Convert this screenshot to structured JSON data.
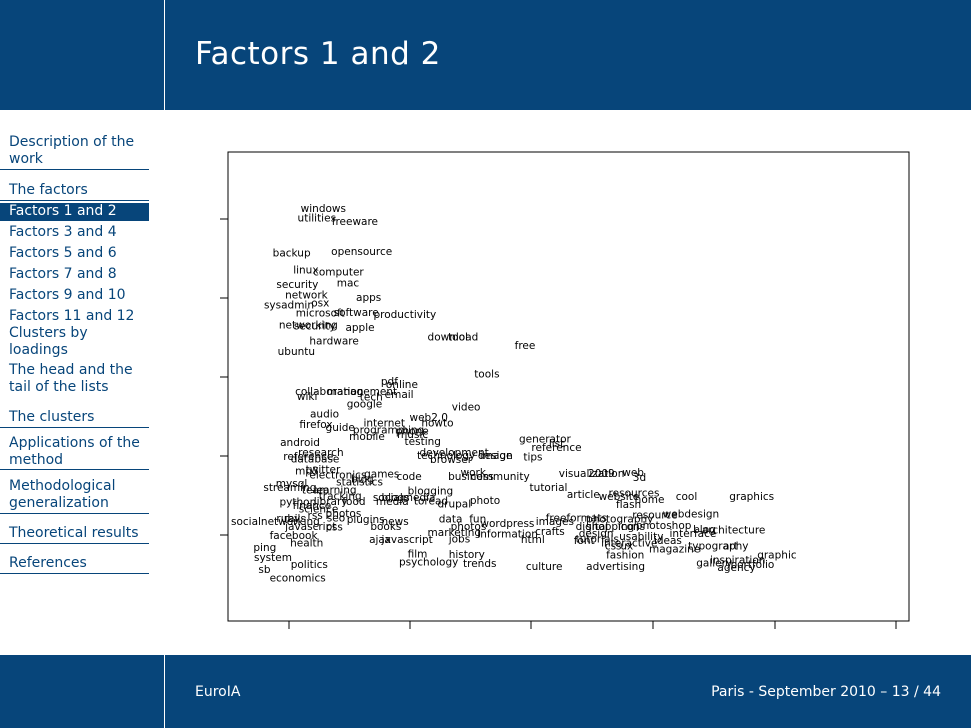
{
  "slide": {
    "title": "Factors 1 and 2",
    "footer_left": "EuroIA",
    "footer_right": "Paris - September 2010 – 13 / 44"
  },
  "sidebar": {
    "items": [
      {
        "label": "Description of the work"
      },
      {
        "label": "The factors"
      },
      {
        "label": "Factors 1 and 2"
      },
      {
        "label": "Factors 3 and 4"
      },
      {
        "label": "Factors 5 and 6"
      },
      {
        "label": "Factors 7 and 8"
      },
      {
        "label": "Factors 9 and 10"
      },
      {
        "label": "Factors 11 and 12"
      },
      {
        "label": "Clusters by loadings"
      },
      {
        "label": "The head and the tail of the lists"
      },
      {
        "label": "The clusters"
      },
      {
        "label": "Applications of the method"
      },
      {
        "label": "Methodological generalization"
      },
      {
        "label": "Theoretical results"
      },
      {
        "label": "References"
      }
    ]
  },
  "colors": {
    "brand": "#07457a",
    "text_on_brand": "#ffffff"
  },
  "chart_data": {
    "type": "scatter",
    "title": "",
    "xlabel": "",
    "ylabel": "",
    "grid": false,
    "x_ticks": 6,
    "y_ticks": 5,
    "xlim": [
      0,
      100
    ],
    "ylim": [
      0,
      100
    ],
    "points": [
      {
        "label": "windows",
        "x": 11.2,
        "y": 94.0
      },
      {
        "label": "utilities",
        "x": 10.7,
        "y": 91.6
      },
      {
        "label": "freeware",
        "x": 16.2,
        "y": 90.7
      },
      {
        "label": "backup",
        "x": 6.7,
        "y": 82.9
      },
      {
        "label": "opensource",
        "x": 16.1,
        "y": 83.2
      },
      {
        "label": "linux",
        "x": 10.0,
        "y": 78.6
      },
      {
        "label": "computer",
        "x": 13.2,
        "y": 78.1
      },
      {
        "label": "security",
        "x": 7.3,
        "y": 75.0
      },
      {
        "label": "mac",
        "x": 17.0,
        "y": 75.4
      },
      {
        "label": "network",
        "x": 8.7,
        "y": 72.4
      },
      {
        "label": "apps",
        "x": 20.1,
        "y": 71.7
      },
      {
        "label": "sysadmin",
        "x": 5.3,
        "y": 69.9
      },
      {
        "label": "osx",
        "x": 12.9,
        "y": 70.4
      },
      {
        "label": "microsoft",
        "x": 10.4,
        "y": 67.9
      },
      {
        "label": "software",
        "x": 16.5,
        "y": 68.0
      },
      {
        "label": "productivity",
        "x": 22.9,
        "y": 67.5
      },
      {
        "label": "networking",
        "x": 7.7,
        "y": 64.9
      },
      {
        "label": "security",
        "x": 10.1,
        "y": 64.6
      },
      {
        "label": "apple",
        "x": 18.4,
        "y": 64.2
      },
      {
        "label": "hardware",
        "x": 12.6,
        "y": 60.9
      },
      {
        "label": "download",
        "x": 31.6,
        "y": 61.9
      },
      {
        "label": "tool",
        "x": 34.9,
        "y": 61.9
      },
      {
        "label": "free",
        "x": 45.6,
        "y": 59.7
      },
      {
        "label": "ubuntu",
        "x": 7.5,
        "y": 58.3
      },
      {
        "label": "tools",
        "x": 39.1,
        "y": 52.6
      },
      {
        "label": "pdf",
        "x": 24.1,
        "y": 50.8
      },
      {
        "label": "online",
        "x": 24.9,
        "y": 50.0
      },
      {
        "label": "collaboration",
        "x": 10.3,
        "y": 48.2
      },
      {
        "label": "management",
        "x": 15.4,
        "y": 48.2
      },
      {
        "label": "tech",
        "x": 20.7,
        "y": 46.9
      },
      {
        "label": "email",
        "x": 24.7,
        "y": 47.5
      },
      {
        "label": "wiki",
        "x": 10.6,
        "y": 47.0
      },
      {
        "label": "google",
        "x": 18.6,
        "y": 45.1
      },
      {
        "label": "video",
        "x": 35.5,
        "y": 44.4
      },
      {
        "label": "audio",
        "x": 12.7,
        "y": 42.6
      },
      {
        "label": "web2.0",
        "x": 28.7,
        "y": 41.8
      },
      {
        "label": "howto",
        "x": 30.6,
        "y": 40.4
      },
      {
        "label": "firefox",
        "x": 11.0,
        "y": 40.0
      },
      {
        "label": "guide",
        "x": 15.2,
        "y": 39.2
      },
      {
        "label": "internet",
        "x": 21.3,
        "y": 40.4
      },
      {
        "label": "programming",
        "x": 19.6,
        "y": 38.6
      },
      {
        "label": "phone",
        "x": 26.5,
        "y": 38.4
      },
      {
        "label": "mobile",
        "x": 19.0,
        "y": 37.0
      },
      {
        "label": "music",
        "x": 26.7,
        "y": 37.5
      },
      {
        "label": "generator",
        "x": 46.3,
        "y": 36.4
      },
      {
        "label": "list",
        "x": 51.1,
        "y": 35.2
      },
      {
        "label": "android",
        "x": 7.9,
        "y": 35.5
      },
      {
        "label": "testing",
        "x": 27.9,
        "y": 35.8
      },
      {
        "label": "reference",
        "x": 48.3,
        "y": 34.3
      },
      {
        "label": "research",
        "x": 10.8,
        "y": 33.0
      },
      {
        "label": "reference",
        "x": 8.4,
        "y": 32.0
      },
      {
        "label": "development",
        "x": 30.3,
        "y": 33.0
      },
      {
        "label": "technology",
        "x": 29.9,
        "y": 32.3
      },
      {
        "label": "design",
        "x": 39.7,
        "y": 32.3
      },
      {
        "label": "image",
        "x": 40.0,
        "y": 32.3
      },
      {
        "label": "tips",
        "x": 47.0,
        "y": 31.9
      },
      {
        "label": "database",
        "x": 9.6,
        "y": 31.4
      },
      {
        "label": "browser",
        "x": 32.0,
        "y": 31.2
      },
      {
        "label": "twitter",
        "x": 12.0,
        "y": 28.7
      },
      {
        "label": "mp3",
        "x": 10.3,
        "y": 28.4
      },
      {
        "label": "electronics",
        "x": 12.6,
        "y": 27.4
      },
      {
        "label": "games",
        "x": 21.4,
        "y": 27.6
      },
      {
        "label": "code",
        "x": 26.6,
        "y": 27.0
      },
      {
        "label": "web",
        "x": 62.9,
        "y": 28.0
      },
      {
        "label": "work",
        "x": 36.9,
        "y": 28.0
      },
      {
        "label": "visualization",
        "x": 52.7,
        "y": 27.8
      },
      {
        "label": "2009",
        "x": 57.4,
        "y": 27.8
      },
      {
        "label": "3d",
        "x": 64.6,
        "y": 26.7
      },
      {
        "label": "blog",
        "x": 19.3,
        "y": 26.4
      },
      {
        "label": "business",
        "x": 34.9,
        "y": 27.0
      },
      {
        "label": "community",
        "x": 38.5,
        "y": 27.0
      },
      {
        "label": "statistics",
        "x": 16.9,
        "y": 25.6
      },
      {
        "label": "mysql",
        "x": 7.2,
        "y": 25.3
      },
      {
        "label": "streaming",
        "x": 5.2,
        "y": 24.2
      },
      {
        "label": "team",
        "x": 11.4,
        "y": 23.6
      },
      {
        "label": "tutorial",
        "x": 48.0,
        "y": 24.2
      },
      {
        "label": "resources",
        "x": 60.7,
        "y": 22.9
      },
      {
        "label": "learning",
        "x": 13.3,
        "y": 23.6
      },
      {
        "label": "tracking",
        "x": 14.1,
        "y": 22.1
      },
      {
        "label": "blogging",
        "x": 28.4,
        "y": 23.4
      },
      {
        "label": "cool",
        "x": 71.5,
        "y": 22.0
      },
      {
        "label": "graphics",
        "x": 80.1,
        "y": 22.0
      },
      {
        "label": "article",
        "x": 54.0,
        "y": 22.5
      },
      {
        "label": "website",
        "x": 59.1,
        "y": 22.0
      },
      {
        "label": "home",
        "x": 64.9,
        "y": 21.2
      },
      {
        "label": "socialmedia",
        "x": 22.8,
        "y": 21.8
      },
      {
        "label": "blogs",
        "x": 24.2,
        "y": 21.8
      },
      {
        "label": "python",
        "x": 7.8,
        "y": 20.6
      },
      {
        "label": "library",
        "x": 13.3,
        "y": 20.8
      },
      {
        "label": "food",
        "x": 17.9,
        "y": 20.7
      },
      {
        "label": "toread",
        "x": 29.4,
        "y": 20.9
      },
      {
        "label": "drupal",
        "x": 33.2,
        "y": 20.1
      },
      {
        "label": "photo",
        "x": 38.4,
        "y": 21.0
      },
      {
        "label": "flash",
        "x": 61.9,
        "y": 20.0
      },
      {
        "label": "finance",
        "x": 9.9,
        "y": 19.7
      },
      {
        "label": "media",
        "x": 23.3,
        "y": 20.7
      },
      {
        "label": "science",
        "x": 10.9,
        "y": 18.9
      },
      {
        "label": "webdesign",
        "x": 69.4,
        "y": 17.6
      },
      {
        "label": "photos",
        "x": 15.2,
        "y": 17.8
      },
      {
        "label": "rss",
        "x": 12.3,
        "y": 17.2
      },
      {
        "label": "ruby",
        "x": 7.3,
        "y": 16.5
      },
      {
        "label": "rails",
        "x": 8.5,
        "y": 16.5
      },
      {
        "label": "seo",
        "x": 15.4,
        "y": 16.6
      },
      {
        "label": "plugins",
        "x": 18.6,
        "y": 16.2
      },
      {
        "label": "news",
        "x": 24.2,
        "y": 15.8
      },
      {
        "label": "data",
        "x": 33.4,
        "y": 16.4
      },
      {
        "label": "fun",
        "x": 38.3,
        "y": 16.4
      },
      {
        "label": "images",
        "x": 49.0,
        "y": 15.8
      },
      {
        "label": "freeformats",
        "x": 50.6,
        "y": 16.6
      },
      {
        "label": "photography",
        "x": 57.1,
        "y": 16.4
      },
      {
        "label": "resource",
        "x": 64.5,
        "y": 17.4
      },
      {
        "label": "socialnetworking",
        "x": 0.0,
        "y": 15.8
      },
      {
        "label": "wordpress",
        "x": 40.1,
        "y": 15.2
      },
      {
        "label": "photos",
        "x": 35.3,
        "y": 14.5
      },
      {
        "label": "photoshop",
        "x": 65.1,
        "y": 14.7
      },
      {
        "label": "digital",
        "x": 55.4,
        "y": 14.5
      },
      {
        "label": "shopping",
        "x": 57.1,
        "y": 14.5
      },
      {
        "label": "icons",
        "x": 62.2,
        "y": 14.5
      },
      {
        "label": "javascript",
        "x": 8.7,
        "y": 14.5
      },
      {
        "label": "css",
        "x": 15.3,
        "y": 14.4
      },
      {
        "label": "books",
        "x": 22.4,
        "y": 14.5
      },
      {
        "label": "architecture",
        "x": 75.7,
        "y": 13.6
      },
      {
        "label": "marketing",
        "x": 31.6,
        "y": 13.0
      },
      {
        "label": "information",
        "x": 39.6,
        "y": 12.6
      },
      {
        "label": "interface",
        "x": 70.5,
        "y": 12.8
      },
      {
        "label": "blog",
        "x": 74.3,
        "y": 13.8
      },
      {
        "label": "crafts",
        "x": 48.9,
        "y": 13.2
      },
      {
        "label": "design",
        "x": 55.9,
        "y": 12.7
      },
      {
        "label": "facebook",
        "x": 6.2,
        "y": 12.2
      },
      {
        "label": "usability",
        "x": 62.4,
        "y": 12.0
      },
      {
        "label": "jobs",
        "x": 35.0,
        "y": 11.4
      },
      {
        "label": "html",
        "x": 46.6,
        "y": 11.2
      },
      {
        "label": "font",
        "x": 55.1,
        "y": 11.0
      },
      {
        "label": "ajax",
        "x": 22.2,
        "y": 11.3
      },
      {
        "label": "javascript",
        "x": 24.2,
        "y": 11.3
      },
      {
        "label": "ideas",
        "x": 68.0,
        "y": 11.0
      },
      {
        "label": "tutorials",
        "x": 55.4,
        "y": 11.4
      },
      {
        "label": "interactive",
        "x": 59.5,
        "y": 10.4
      },
      {
        "label": "health",
        "x": 9.5,
        "y": 10.4
      },
      {
        "label": "typography",
        "x": 73.5,
        "y": 9.6
      },
      {
        "label": "art",
        "x": 79.1,
        "y": 9.6
      },
      {
        "label": "css",
        "x": 60.1,
        "y": 9.6
      },
      {
        "label": "ux",
        "x": 62.6,
        "y": 9.6
      },
      {
        "label": "magazine",
        "x": 67.2,
        "y": 8.9
      },
      {
        "label": "ping",
        "x": 3.6,
        "y": 9.3
      },
      {
        "label": "history",
        "x": 35.0,
        "y": 7.5
      },
      {
        "label": "film",
        "x": 28.4,
        "y": 7.6
      },
      {
        "label": "fashion",
        "x": 60.3,
        "y": 7.4
      },
      {
        "label": "graphic",
        "x": 84.6,
        "y": 7.4
      },
      {
        "label": "system",
        "x": 3.7,
        "y": 6.7
      },
      {
        "label": "politics",
        "x": 9.6,
        "y": 5.0
      },
      {
        "label": "psychology",
        "x": 27.0,
        "y": 5.6
      },
      {
        "label": "trends",
        "x": 37.3,
        "y": 5.3
      },
      {
        "label": "inspiration",
        "x": 77.0,
        "y": 6.1
      },
      {
        "label": "gallery",
        "x": 74.8,
        "y": 5.4
      },
      {
        "label": "portfolio",
        "x": 80.3,
        "y": 5.0
      },
      {
        "label": "culture",
        "x": 47.4,
        "y": 4.5
      },
      {
        "label": "advertising",
        "x": 57.1,
        "y": 4.5
      },
      {
        "label": "agency",
        "x": 78.2,
        "y": 4.2
      },
      {
        "label": "sb",
        "x": 4.4,
        "y": 3.8
      },
      {
        "label": "economics",
        "x": 6.2,
        "y": 1.6
      }
    ]
  }
}
